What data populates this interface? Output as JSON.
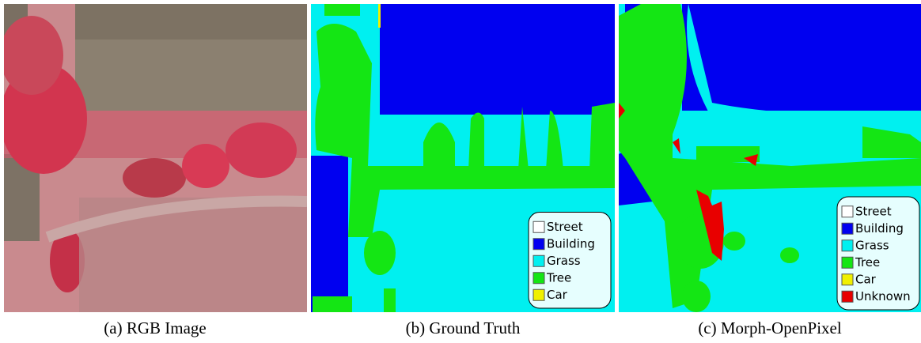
{
  "panels": [
    {
      "caption": "(a) RGB Image"
    },
    {
      "caption": "(b) Ground Truth",
      "legend": [
        {
          "label": "Street",
          "color": "#ffffff"
        },
        {
          "label": "Building",
          "color": "#0000f0"
        },
        {
          "label": "Grass",
          "color": "#00f0f0"
        },
        {
          "label": "Tree",
          "color": "#14e614"
        },
        {
          "label": "Car",
          "color": "#f0f000"
        }
      ]
    },
    {
      "caption": "(c) Morph-OpenPixel",
      "legend": [
        {
          "label": "Street",
          "color": "#ffffff"
        },
        {
          "label": "Building",
          "color": "#0000f0"
        },
        {
          "label": "Grass",
          "color": "#00f0f0"
        },
        {
          "label": "Tree",
          "color": "#14e614"
        },
        {
          "label": "Car",
          "color": "#f0f000"
        },
        {
          "label": "Unknown",
          "color": "#e80000"
        }
      ]
    }
  ]
}
